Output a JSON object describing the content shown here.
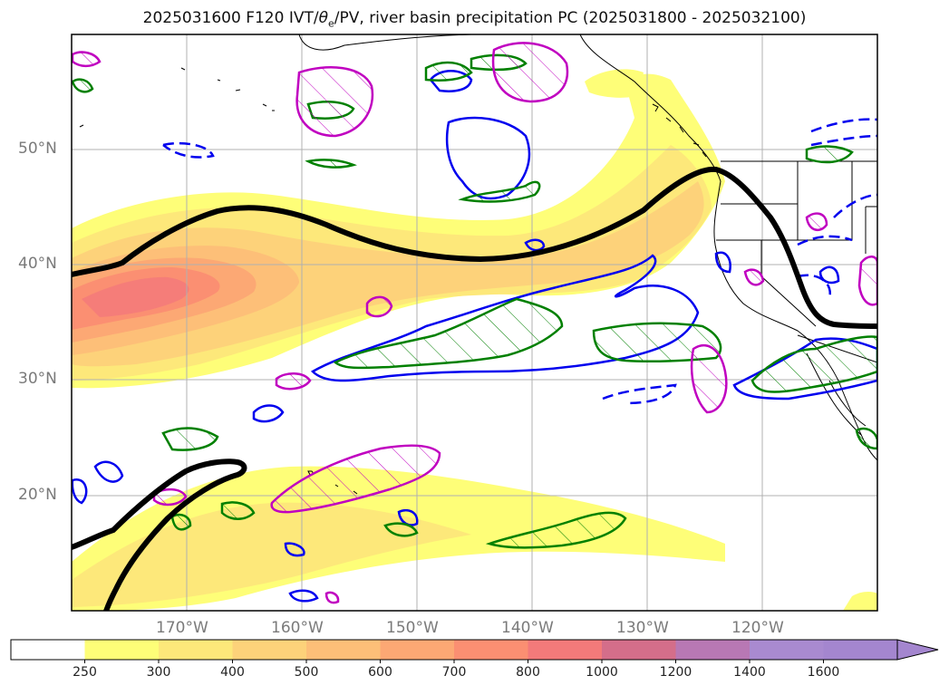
{
  "title": "2025031600 F120 IVT/θe/PV, river basin precipitation PC (2025031800 - 2025032100)",
  "title_parts": {
    "prefix": "2025031600 F120 IVT/",
    "theta": "θ",
    "sub": "e",
    "suffix": "/PV, river basin precipitation PC (2025031800 - 2025032100)"
  },
  "lat_labels": [
    "50°N",
    "40°N",
    "30°N",
    "20°N"
  ],
  "lon_labels": [
    "170°W",
    "160°W",
    "150°W",
    "140°W",
    "130°W",
    "120°W"
  ],
  "colorbar": {
    "levels": [
      "250",
      "300",
      "400",
      "500",
      "600",
      "700",
      "800",
      "1000",
      "1200",
      "1400",
      "1600"
    ],
    "colors": [
      "#ffffff",
      "#fefe78",
      "#fde87a",
      "#fdd27a",
      "#fdbf78",
      "#fca874",
      "#fb8f72",
      "#f37a7a",
      "#d46e8a",
      "#b878b4",
      "#a98ad0",
      "#a486cf"
    ],
    "extend": "max"
  },
  "colors": {
    "ivt_low": "#fefe78",
    "ivt_mid": "#fdd27a",
    "ivt_high": "#fb8f72",
    "ivt_peak": "#f37a7a",
    "pv_contour": "#000000",
    "theta_contour": "#0000ee",
    "precip_green": "#008000",
    "precip_magenta": "#c000c0",
    "grid": "#b0b0b0"
  }
}
